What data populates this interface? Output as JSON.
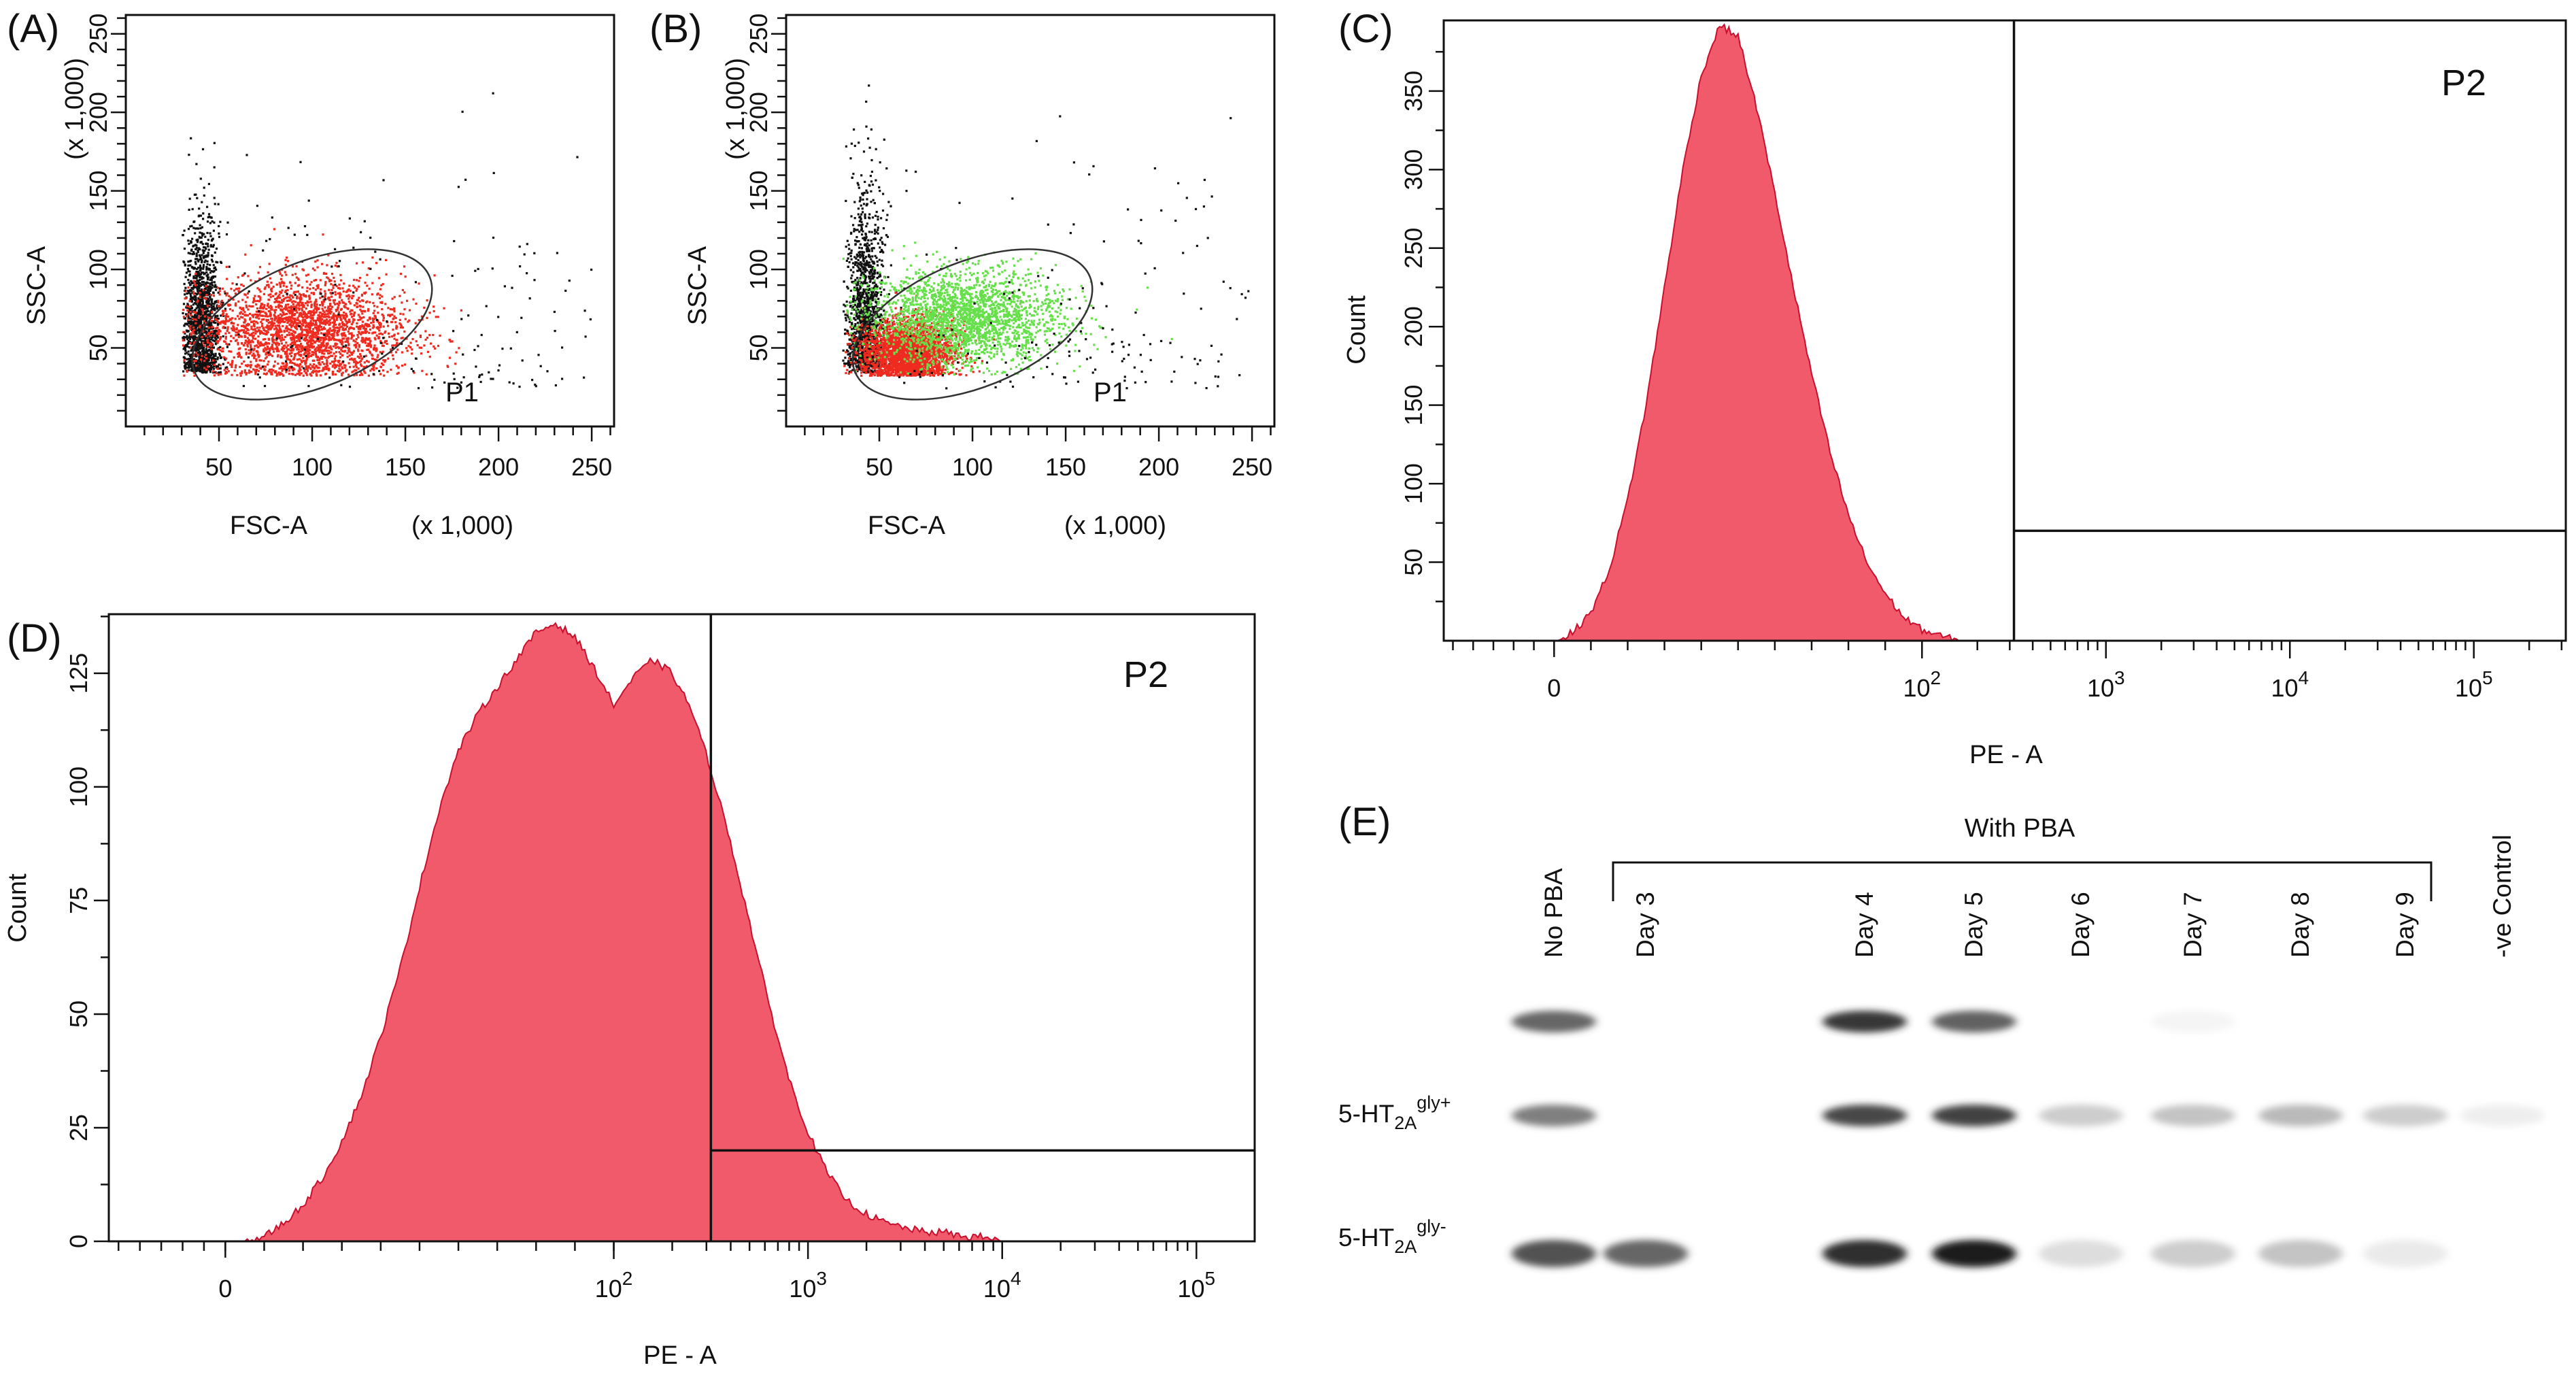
{
  "colors": {
    "gated_red": "#ef2b20",
    "gated_green": "#66e04a",
    "hist_fill": "#f05a6a",
    "hist_stroke": "#c8102e",
    "ungated_dots": "#111111",
    "axis": "#111111"
  },
  "panels": {
    "A": {
      "label": "(A)"
    },
    "B": {
      "label": "(B)"
    },
    "C": {
      "label": "(C)"
    },
    "D": {
      "label": "(D)"
    },
    "E": {
      "label": "(E)"
    }
  },
  "chart_data": [
    {
      "panel": "A",
      "type": "scatter",
      "xlabel": "FSC-A",
      "xunit": "(x 1,000)",
      "ylabel": "SSC-A",
      "yunit": "(x 1,000)",
      "xlim": [
        0,
        262
      ],
      "ylim": [
        0,
        262
      ],
      "xticks": [
        "50",
        "100",
        "150",
        "200",
        "250"
      ],
      "yticks": [
        "50",
        "100",
        "150",
        "200",
        "250"
      ],
      "gate": {
        "name": "P1",
        "center": [
          100,
          65
        ],
        "radius": [
          68,
          40
        ],
        "angle_deg": 22
      },
      "populations": [
        {
          "name": "",
          "color": "#111111",
          "center": [
            40,
            80
          ],
          "spread": [
            5,
            26
          ]
        },
        {
          "name": "",
          "color": "#ef2b20",
          "center": [
            95,
            62
          ],
          "spread": [
            28,
            17
          ]
        }
      ]
    },
    {
      "panel": "B",
      "type": "scatter",
      "xlabel": "FSC-A",
      "xunit": "(x 1,000)",
      "ylabel": "SSC-A",
      "yunit": "(x 1,000)",
      "xlim": [
        0,
        262
      ],
      "ylim": [
        0,
        262
      ],
      "xticks": [
        "50",
        "100",
        "150",
        "200",
        "250"
      ],
      "yticks": [
        "50",
        "100",
        "150",
        "200",
        "250"
      ],
      "gate": {
        "name": "P1",
        "center": [
          100,
          65
        ],
        "radius": [
          68,
          40
        ],
        "angle_deg": 22
      },
      "populations": [
        {
          "name": "",
          "color": "#111111",
          "center": [
            42,
            95
          ],
          "spread": [
            5,
            30
          ]
        },
        {
          "name": "",
          "color": "#ef2b20",
          "center": [
            65,
            48
          ],
          "spread": [
            12,
            10
          ]
        },
        {
          "name": "",
          "color": "#66e04a",
          "center": [
            95,
            70
          ],
          "spread": [
            26,
            15
          ]
        }
      ]
    },
    {
      "panel": "C",
      "type": "area",
      "xlabel": "PE - A",
      "ylabel": "Count",
      "xscale": "biexponential",
      "xlim": [
        -0.6,
        5.5
      ],
      "ylim": [
        0,
        395
      ],
      "yticks": [
        "50",
        "100",
        "150",
        "200",
        "250",
        "300",
        "350"
      ],
      "xticklabels": [
        {
          "v": 0,
          "t": "0"
        },
        {
          "v": 2,
          "t": "10",
          "e": "2"
        },
        {
          "v": 3,
          "t": "10",
          "e": "3"
        },
        {
          "v": 4,
          "t": "10",
          "e": "4"
        },
        {
          "v": 5,
          "t": "10",
          "e": "5"
        }
      ],
      "gate": {
        "name": "P2",
        "x_start": 2.5,
        "line_y": 70
      },
      "x": [
        0.0,
        0.1,
        0.2,
        0.3,
        0.4,
        0.5,
        0.6,
        0.7,
        0.8,
        0.9,
        1.0,
        1.1,
        1.2,
        1.3,
        1.4,
        1.5,
        1.6,
        1.7,
        1.8,
        1.9,
        2.0,
        2.1,
        2.2
      ],
      "y": [
        0,
        5,
        18,
        45,
        90,
        150,
        225,
        300,
        360,
        392,
        385,
        340,
        285,
        225,
        170,
        120,
        80,
        50,
        30,
        15,
        7,
        3,
        0
      ]
    },
    {
      "panel": "D",
      "type": "area",
      "xlabel": "PE - A",
      "ylabel": "Count",
      "xscale": "biexponential",
      "xlim": [
        -0.6,
        5.3
      ],
      "ylim": [
        0,
        138
      ],
      "yticks": [
        "0",
        "25",
        "50",
        "75",
        "100",
        "125"
      ],
      "xticklabels": [
        {
          "v": 0,
          "t": "0"
        },
        {
          "v": 2,
          "t": "10",
          "e": "2"
        },
        {
          "v": 3,
          "t": "10",
          "e": "3"
        },
        {
          "v": 4,
          "t": "10",
          "e": "4"
        },
        {
          "v": 5,
          "t": "10",
          "e": "5"
        }
      ],
      "gate": {
        "name": "P2",
        "x_start": 2.5,
        "line_y": 20
      },
      "x": [
        0.0,
        0.1,
        0.2,
        0.3,
        0.4,
        0.5,
        0.6,
        0.7,
        0.8,
        0.9,
        1.0,
        1.1,
        1.2,
        1.3,
        1.4,
        1.5,
        1.6,
        1.7,
        1.8,
        1.9,
        2.0,
        2.1,
        2.2,
        2.3,
        2.4,
        2.5,
        2.6,
        2.7,
        2.8,
        2.9,
        3.0,
        3.1,
        3.2,
        3.3,
        3.4,
        3.5,
        3.6,
        3.7,
        3.8,
        3.9,
        4.0,
        4.1,
        4.2
      ],
      "y": [
        0,
        0,
        1,
        4,
        8,
        14,
        22,
        32,
        45,
        60,
        78,
        95,
        108,
        116,
        122,
        128,
        134,
        136,
        133,
        126,
        118,
        124,
        128,
        125,
        117,
        104,
        88,
        70,
        52,
        36,
        24,
        15,
        9,
        6,
        4,
        3,
        2,
        2,
        1,
        1,
        0,
        0,
        0
      ]
    }
  ],
  "blot": {
    "group_label": "With PBA",
    "lanes": [
      "No PBA",
      "Day 3",
      "Day 4",
      "Day 5",
      "Day 6",
      "Day 7",
      "Day 8",
      "Day 9",
      "-ve Control"
    ],
    "band_labels": [
      {
        "main": "5-HT",
        "sub": "2A",
        "sup": "gly+"
      },
      {
        "main": "5-HT",
        "sub": "2A",
        "sup": "gly-"
      }
    ],
    "intensities": {
      "top": [
        0.78,
        0.0,
        0.92,
        0.8,
        0.0,
        0.05,
        0.0,
        0.0,
        0.0
      ],
      "glyp": [
        0.7,
        0.0,
        0.88,
        0.9,
        0.35,
        0.4,
        0.45,
        0.35,
        0.12
      ],
      "glym": [
        0.85,
        0.78,
        0.95,
        1.0,
        0.25,
        0.35,
        0.4,
        0.15,
        0.0
      ]
    }
  }
}
